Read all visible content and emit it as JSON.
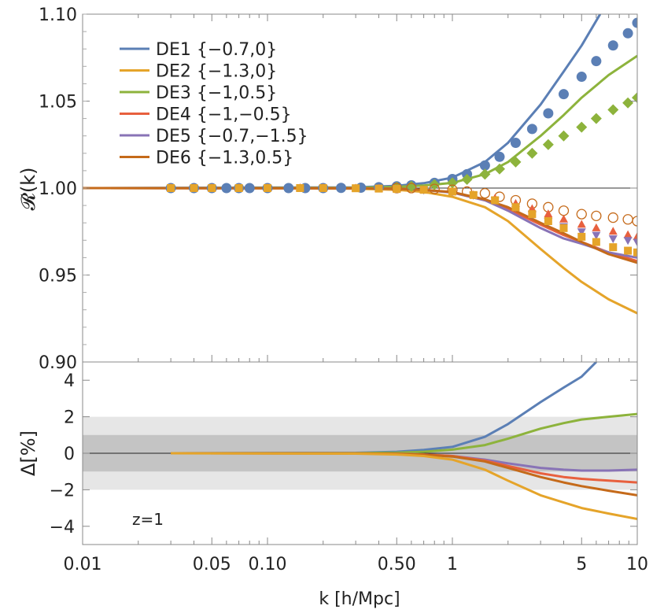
{
  "chart_data": [
    {
      "type": "line",
      "panel": "top",
      "ylabel": "𝓡(k)",
      "xlabel": "",
      "xscale": "log",
      "xlim": [
        0.01,
        10
      ],
      "ylim": [
        0.9,
        1.1
      ],
      "yticks": [
        0.9,
        0.95,
        1.0,
        1.05,
        1.1
      ],
      "ytick_labels": [
        "0.90",
        "0.95",
        "1.00",
        "1.05",
        "1.10"
      ],
      "reference_line": 1.0,
      "legend_position": "top-left",
      "series": [
        {
          "name": "DE1 {−0.7,0}",
          "color": "#5b7fb5",
          "x": [
            0.01,
            0.3,
            0.5,
            0.7,
            1,
            1.5,
            2,
            3,
            4,
            5,
            6.3
          ],
          "y": [
            1.0,
            1.0004,
            1.0013,
            1.0028,
            1.006,
            1.015,
            1.026,
            1.048,
            1.067,
            1.082,
            1.1
          ]
        },
        {
          "name": "DE2 {−1.3,0}",
          "color": "#e5a42a",
          "x": [
            0.01,
            0.3,
            0.5,
            0.7,
            1,
            1.5,
            2,
            3,
            4,
            5,
            7,
            10
          ],
          "y": [
            1.0,
            0.9997,
            0.999,
            0.9978,
            0.995,
            0.989,
            0.981,
            0.965,
            0.954,
            0.946,
            0.936,
            0.928
          ]
        },
        {
          "name": "DE3 {−1,0.5}",
          "color": "#8db33c",
          "x": [
            0.01,
            0.3,
            0.5,
            0.7,
            1,
            1.5,
            2,
            3,
            4,
            5,
            7,
            10
          ],
          "y": [
            1.0,
            1.0002,
            1.0007,
            1.0015,
            1.003,
            1.008,
            1.015,
            1.03,
            1.042,
            1.052,
            1.065,
            1.076
          ]
        },
        {
          "name": "DE4 {−1,−0.5}",
          "color": "#e8603e",
          "x": [
            0.01,
            0.3,
            0.5,
            0.7,
            1,
            1.5,
            2,
            3,
            4,
            5,
            7,
            10
          ],
          "y": [
            1.0,
            0.9999,
            0.9996,
            0.999,
            0.9975,
            0.993,
            0.988,
            0.979,
            0.973,
            0.969,
            0.963,
            0.958
          ]
        },
        {
          "name": "DE5 {−0.7,−1.5}",
          "color": "#8873b6",
          "x": [
            0.01,
            0.3,
            0.5,
            0.7,
            1,
            1.5,
            2,
            3,
            4,
            5,
            7,
            10
          ],
          "y": [
            1.0,
            0.9999,
            0.9996,
            0.999,
            0.9974,
            0.993,
            0.987,
            0.977,
            0.971,
            0.968,
            0.963,
            0.96
          ]
        },
        {
          "name": "DE6 {−1.3,0.5}",
          "color": "#c56a1a",
          "x": [
            0.01,
            0.3,
            0.5,
            0.7,
            1,
            1.5,
            2,
            3,
            4,
            5,
            7,
            10
          ],
          "y": [
            1.0,
            0.9999,
            0.9996,
            0.999,
            0.9977,
            0.9935,
            0.989,
            0.98,
            0.974,
            0.969,
            0.962,
            0.957
          ]
        }
      ],
      "markers": [
        {
          "series": "DE1",
          "shape": "circle-filled",
          "color": "#5b7fb5",
          "x": [
            0.03,
            0.04,
            0.05,
            0.06,
            0.07,
            0.08,
            0.1,
            0.13,
            0.16,
            0.2,
            0.25,
            0.32,
            0.4,
            0.5,
            0.6,
            0.8,
            1,
            1.2,
            1.5,
            1.8,
            2.2,
            2.7,
            3.3,
            4,
            5,
            6,
            7.4,
            8.9,
            10
          ],
          "y": [
            1.0,
            1.0,
            1.0,
            1.0,
            1.0,
            1.0,
            1.0,
            1.0,
            1.0,
            1.0,
            1.0001,
            1.0002,
            1.0005,
            1.001,
            1.0016,
            1.003,
            1.0052,
            1.008,
            1.013,
            1.018,
            1.026,
            1.034,
            1.043,
            1.054,
            1.064,
            1.073,
            1.082,
            1.089,
            1.095
          ]
        },
        {
          "series": "DE3",
          "shape": "diamond-filled",
          "color": "#8db33c",
          "x": [
            0.5,
            0.6,
            0.8,
            1,
            1.2,
            1.5,
            1.8,
            2.2,
            2.7,
            3.3,
            4,
            5,
            6,
            7.4,
            8.9,
            10
          ],
          "y": [
            1.0005,
            1.001,
            1.002,
            1.003,
            1.005,
            1.008,
            1.011,
            1.015,
            1.02,
            1.025,
            1.03,
            1.035,
            1.04,
            1.045,
            1.049,
            1.052
          ]
        },
        {
          "series": "DE6",
          "shape": "circle-open",
          "color": "#c56a1a",
          "x": [
            0.5,
            0.6,
            0.8,
            1,
            1.2,
            1.5,
            1.8,
            2.2,
            2.7,
            3.3,
            4,
            5,
            6,
            7.4,
            8.9,
            10
          ],
          "y": [
            1.0,
            1.0,
            0.9995,
            0.999,
            0.998,
            0.997,
            0.995,
            0.993,
            0.991,
            0.989,
            0.987,
            0.985,
            0.984,
            0.983,
            0.982,
            0.981
          ]
        },
        {
          "series": "DE4",
          "shape": "triangle-up",
          "color": "#e8603e",
          "x": [
            0.03,
            0.04,
            0.05,
            0.07,
            0.1,
            0.15,
            0.2,
            0.3,
            0.4,
            0.5,
            0.7,
            1,
            1.3,
            1.7,
            2.2,
            2.7,
            3.3,
            4,
            5,
            6,
            7.4,
            8.9,
            10
          ],
          "y": [
            1.0,
            1.0,
            1.0,
            1.0,
            1.0,
            1.0,
            1.0,
            0.9999,
            0.9997,
            0.9995,
            0.999,
            0.998,
            0.996,
            0.994,
            0.991,
            0.988,
            0.985,
            0.982,
            0.979,
            0.977,
            0.975,
            0.973,
            0.972
          ]
        },
        {
          "series": "DE5",
          "shape": "triangle-down",
          "color": "#8873b6",
          "x": [
            0.5,
            0.7,
            1,
            1.3,
            1.7,
            2.2,
            2.7,
            3.3,
            4,
            5,
            6,
            7.4,
            8.9,
            10
          ],
          "y": [
            0.9995,
            0.999,
            0.998,
            0.996,
            0.993,
            0.989,
            0.985,
            0.981,
            0.978,
            0.975,
            0.973,
            0.971,
            0.97,
            0.969
          ]
        },
        {
          "series": "DE2",
          "shape": "square-filled",
          "color": "#e5a42a",
          "x": [
            0.03,
            0.04,
            0.05,
            0.07,
            0.1,
            0.15,
            0.2,
            0.3,
            0.4,
            0.5,
            0.7,
            1,
            1.3,
            1.7,
            2.2,
            2.7,
            3.3,
            4,
            5,
            6,
            7.4,
            8.9,
            10
          ],
          "y": [
            1.0,
            1.0,
            1.0,
            1.0,
            1.0,
            1.0,
            1.0,
            0.9999,
            0.9997,
            0.9995,
            0.999,
            0.998,
            0.996,
            0.993,
            0.989,
            0.985,
            0.981,
            0.977,
            0.972,
            0.969,
            0.966,
            0.964,
            0.963
          ]
        }
      ]
    },
    {
      "type": "line",
      "panel": "bottom",
      "ylabel": "Δ[%]",
      "xlabel": "k [h/Mpc]",
      "xscale": "log",
      "xlim": [
        0.01,
        10
      ],
      "ylim": [
        -5,
        5
      ],
      "yticks": [
        -4,
        -2,
        0,
        2,
        4
      ],
      "ytick_labels": [
        "−4",
        "−2",
        "0",
        "2",
        "4"
      ],
      "xticks": [
        0.01,
        0.05,
        0.1,
        0.5,
        1,
        5,
        10
      ],
      "xtick_labels": [
        "0.01",
        "0.05",
        "0.10",
        "0.50",
        "1",
        "5",
        "10"
      ],
      "bands": [
        {
          "from": -2,
          "to": 2,
          "color": "#e6e6e6"
        },
        {
          "from": -1,
          "to": 1,
          "color": "#c4c4c4"
        }
      ],
      "annotation": "z=1",
      "series": [
        {
          "name": "DE1",
          "color": "#5b7fb5",
          "x": [
            0.03,
            0.3,
            0.5,
            0.7,
            1,
            1.5,
            2,
            3,
            4,
            5,
            6
          ],
          "y": [
            0,
            0.02,
            0.08,
            0.18,
            0.35,
            0.9,
            1.6,
            2.8,
            3.6,
            4.2,
            5.0
          ]
        },
        {
          "name": "DE3",
          "color": "#8db33c",
          "x": [
            0.03,
            0.3,
            0.5,
            0.7,
            1,
            1.5,
            2,
            3,
            4,
            5,
            7,
            10
          ],
          "y": [
            0,
            0.01,
            0.03,
            0.08,
            0.2,
            0.45,
            0.8,
            1.35,
            1.65,
            1.85,
            2.0,
            2.15
          ]
        },
        {
          "name": "DE5",
          "color": "#8873b6",
          "x": [
            0.03,
            0.3,
            0.5,
            0.7,
            1,
            1.5,
            2,
            3,
            4,
            5,
            7,
            10
          ],
          "y": [
            0,
            -0.01,
            -0.03,
            -0.07,
            -0.15,
            -0.35,
            -0.55,
            -0.8,
            -0.9,
            -0.95,
            -0.95,
            -0.9
          ]
        },
        {
          "name": "DE4",
          "color": "#e8603e",
          "x": [
            0.03,
            0.3,
            0.5,
            0.7,
            1,
            1.5,
            2,
            3,
            4,
            5,
            7,
            10
          ],
          "y": [
            0,
            -0.01,
            -0.03,
            -0.07,
            -0.15,
            -0.4,
            -0.7,
            -1.1,
            -1.3,
            -1.4,
            -1.5,
            -1.6
          ]
        },
        {
          "name": "DE6",
          "color": "#c56a1a",
          "x": [
            0.03,
            0.3,
            0.5,
            0.7,
            1,
            1.5,
            2,
            3,
            4,
            5,
            7,
            10
          ],
          "y": [
            0,
            -0.01,
            -0.03,
            -0.08,
            -0.18,
            -0.45,
            -0.8,
            -1.3,
            -1.6,
            -1.8,
            -2.05,
            -2.3
          ]
        },
        {
          "name": "DE2",
          "color": "#e5a42a",
          "x": [
            0.03,
            0.3,
            0.5,
            0.7,
            1,
            1.5,
            2,
            3,
            4,
            5,
            7,
            10
          ],
          "y": [
            0,
            -0.02,
            -0.07,
            -0.15,
            -0.35,
            -0.9,
            -1.5,
            -2.3,
            -2.7,
            -3.0,
            -3.3,
            -3.6
          ]
        }
      ]
    }
  ]
}
